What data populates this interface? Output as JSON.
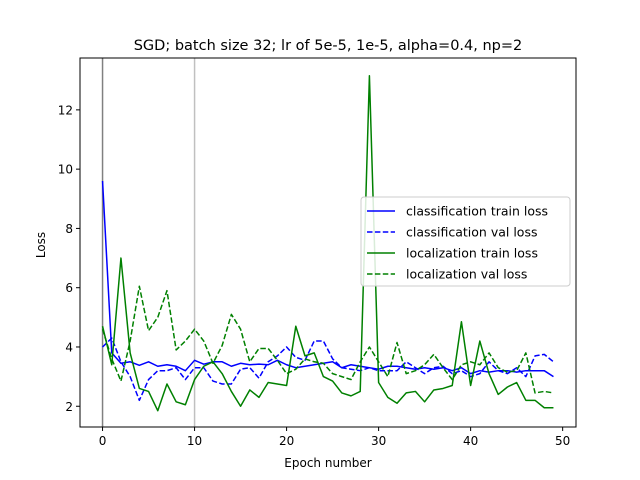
{
  "chart_data": {
    "type": "line",
    "title": "SGD; batch size 32; lr of 5e-5, 1e-5, alpha=0.4, np=2",
    "xlabel": "Epoch number",
    "ylabel": "Loss",
    "xlim": [
      -2.45,
      51.45
    ],
    "ylim": [
      1.3,
      13.75
    ],
    "xticks": [
      0,
      10,
      20,
      30,
      40,
      50
    ],
    "yticks": [
      2,
      4,
      6,
      8,
      10,
      12
    ],
    "grid": false,
    "legend_location": "center-right",
    "vertical_markers": [
      {
        "x": 0,
        "color": "#808080"
      },
      {
        "x": 10,
        "color": "#c0c0c0"
      }
    ],
    "series": [
      {
        "name": "classification train loss",
        "color": "#0000ff",
        "linestyle": "solid",
        "x": [
          0,
          1,
          2,
          3,
          4,
          5,
          6,
          7,
          8,
          9,
          10,
          11,
          12,
          13,
          14,
          15,
          16,
          17,
          18,
          19,
          20,
          21,
          22,
          23,
          24,
          25,
          26,
          27,
          28,
          29,
          30,
          31,
          32,
          33,
          34,
          35,
          36,
          37,
          38,
          39,
          40,
          41,
          42,
          43,
          44,
          45,
          46,
          47,
          48,
          49
        ],
        "values": [
          9.6,
          3.8,
          3.45,
          3.5,
          3.38,
          3.5,
          3.35,
          3.4,
          3.35,
          3.2,
          3.55,
          3.42,
          3.5,
          3.5,
          3.35,
          3.45,
          3.4,
          3.42,
          3.4,
          3.55,
          3.4,
          3.3,
          3.35,
          3.4,
          3.45,
          3.5,
          3.3,
          3.4,
          3.35,
          3.3,
          3.25,
          3.35,
          3.35,
          3.3,
          3.25,
          3.3,
          3.25,
          3.3,
          3.2,
          3.3,
          3.1,
          3.2,
          3.15,
          3.2,
          3.2,
          3.15,
          3.2,
          3.2,
          3.2,
          3.0
        ]
      },
      {
        "name": "classification val loss",
        "color": "#0000ff",
        "linestyle": "dashed",
        "x": [
          0,
          1,
          2,
          3,
          4,
          5,
          6,
          7,
          8,
          9,
          10,
          11,
          12,
          13,
          14,
          15,
          16,
          17,
          18,
          19,
          20,
          21,
          22,
          23,
          24,
          25,
          26,
          27,
          28,
          29,
          30,
          31,
          32,
          33,
          34,
          35,
          36,
          37,
          38,
          39,
          40,
          41,
          42,
          43,
          44,
          45,
          46,
          47,
          48,
          49
        ],
        "values": [
          4.0,
          4.3,
          3.5,
          3.0,
          2.2,
          2.9,
          3.2,
          3.2,
          3.3,
          2.9,
          3.3,
          3.3,
          2.85,
          2.75,
          2.75,
          3.25,
          3.3,
          2.95,
          3.5,
          3.7,
          4.0,
          3.65,
          3.55,
          4.2,
          4.2,
          3.6,
          3.3,
          3.25,
          3.2,
          3.3,
          3.2,
          3.2,
          3.2,
          3.5,
          3.3,
          3.1,
          3.3,
          3.35,
          3.1,
          3.2,
          3.0,
          3.1,
          3.5,
          3.2,
          3.1,
          3.3,
          3.0,
          3.7,
          3.75,
          3.5
        ]
      },
      {
        "name": "localization train loss",
        "color": "#008000",
        "linestyle": "solid",
        "x": [
          0,
          1,
          2,
          3,
          4,
          5,
          6,
          7,
          8,
          9,
          10,
          11,
          12,
          13,
          14,
          15,
          16,
          17,
          18,
          19,
          20,
          21,
          22,
          23,
          24,
          25,
          26,
          27,
          28,
          29,
          30,
          31,
          32,
          33,
          34,
          35,
          36,
          37,
          38,
          39,
          40,
          41,
          42,
          43,
          44,
          45,
          46,
          47,
          48,
          49
        ],
        "values": [
          4.7,
          3.4,
          7.0,
          3.8,
          2.6,
          2.5,
          1.85,
          2.75,
          2.15,
          2.05,
          2.9,
          3.35,
          3.5,
          3.1,
          2.5,
          2.0,
          2.55,
          2.3,
          2.8,
          2.75,
          2.7,
          4.7,
          3.7,
          3.8,
          3.0,
          2.85,
          2.45,
          2.35,
          2.5,
          13.15,
          2.8,
          2.3,
          2.1,
          2.45,
          2.5,
          2.15,
          2.55,
          2.6,
          2.7,
          4.85,
          2.7,
          4.2,
          3.1,
          2.4,
          2.65,
          2.8,
          2.2,
          2.2,
          1.95,
          1.95
        ]
      },
      {
        "name": "localization val loss",
        "color": "#008000",
        "linestyle": "dashed",
        "x": [
          0,
          1,
          2,
          3,
          4,
          5,
          6,
          7,
          8,
          9,
          10,
          11,
          12,
          13,
          14,
          15,
          16,
          17,
          18,
          19,
          20,
          21,
          22,
          23,
          24,
          25,
          26,
          27,
          28,
          29,
          30,
          31,
          32,
          33,
          34,
          35,
          36,
          37,
          38,
          39,
          40,
          41,
          42,
          43,
          44,
          45,
          46,
          47,
          48,
          49
        ],
        "values": [
          4.6,
          3.6,
          2.85,
          4.2,
          6.05,
          4.55,
          5.0,
          5.9,
          3.9,
          4.2,
          4.6,
          4.2,
          3.45,
          4.05,
          5.1,
          4.6,
          3.5,
          3.95,
          3.95,
          3.55,
          3.1,
          3.25,
          3.6,
          3.5,
          3.45,
          3.1,
          3.0,
          2.9,
          3.5,
          4.0,
          3.5,
          3.0,
          4.15,
          3.1,
          3.2,
          3.4,
          3.75,
          3.3,
          2.9,
          3.4,
          3.5,
          3.4,
          3.8,
          3.3,
          3.15,
          3.2,
          3.8,
          2.45,
          2.5,
          2.45
        ]
      }
    ]
  }
}
